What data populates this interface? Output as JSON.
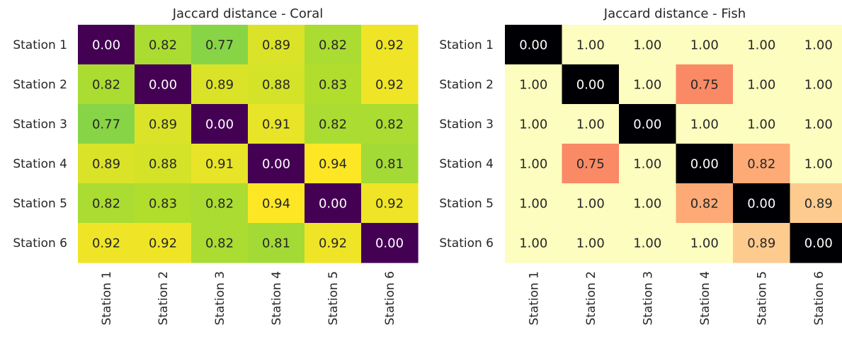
{
  "chart_data": [
    {
      "type": "heatmap",
      "title": "Jaccard distance - Coral",
      "colormap": "viridis",
      "rows": [
        "Station 1",
        "Station 2",
        "Station 3",
        "Station 4",
        "Station 5",
        "Station 6"
      ],
      "columns": [
        "Station 1",
        "Station 2",
        "Station 3",
        "Station 4",
        "Station 5",
        "Station 6"
      ],
      "values": [
        [
          0.0,
          0.82,
          0.77,
          0.89,
          0.82,
          0.92
        ],
        [
          0.82,
          0.0,
          0.89,
          0.88,
          0.83,
          0.92
        ],
        [
          0.77,
          0.89,
          0.0,
          0.91,
          0.82,
          0.82
        ],
        [
          0.89,
          0.88,
          0.91,
          0.0,
          0.94,
          0.81
        ],
        [
          0.82,
          0.83,
          0.82,
          0.94,
          0.0,
          0.92
        ],
        [
          0.92,
          0.92,
          0.82,
          0.81,
          0.92,
          0.0
        ]
      ],
      "labels": [
        [
          "0.00",
          "0.82",
          "0.77",
          "0.89",
          "0.82",
          "0.92"
        ],
        [
          "0.82",
          "0.00",
          "0.89",
          "0.88",
          "0.83",
          "0.92"
        ],
        [
          "0.77",
          "0.89",
          "0.00",
          "0.91",
          "0.82",
          "0.82"
        ],
        [
          "0.89",
          "0.88",
          "0.91",
          "0.00",
          "0.94",
          "0.81"
        ],
        [
          "0.82",
          "0.83",
          "0.82",
          "0.94",
          "0.00",
          "0.92"
        ],
        [
          "0.92",
          "0.92",
          "0.82",
          "0.81",
          "0.92",
          "0.00"
        ]
      ]
    },
    {
      "type": "heatmap",
      "title": "Jaccard distance - Fish",
      "colormap": "magma",
      "rows": [
        "Station 1",
        "Station 2",
        "Station 3",
        "Station 4",
        "Station 5",
        "Station 6"
      ],
      "columns": [
        "Station 1",
        "Station 2",
        "Station 3",
        "Station 4",
        "Station 5",
        "Station 6"
      ],
      "values": [
        [
          0.0,
          1.0,
          1.0,
          1.0,
          1.0,
          1.0
        ],
        [
          1.0,
          0.0,
          1.0,
          0.75,
          1.0,
          1.0
        ],
        [
          1.0,
          1.0,
          0.0,
          1.0,
          1.0,
          1.0
        ],
        [
          1.0,
          0.75,
          1.0,
          0.0,
          0.82,
          1.0
        ],
        [
          1.0,
          1.0,
          1.0,
          0.82,
          0.0,
          0.89
        ],
        [
          1.0,
          1.0,
          1.0,
          1.0,
          0.89,
          0.0
        ]
      ],
      "labels": [
        [
          "0.00",
          "1.00",
          "1.00",
          "1.00",
          "1.00",
          "1.00"
        ],
        [
          "1.00",
          "0.00",
          "1.00",
          "0.75",
          "1.00",
          "1.00"
        ],
        [
          "1.00",
          "1.00",
          "0.00",
          "1.00",
          "1.00",
          "1.00"
        ],
        [
          "1.00",
          "0.75",
          "1.00",
          "0.00",
          "0.82",
          "1.00"
        ],
        [
          "1.00",
          "1.00",
          "1.00",
          "0.82",
          "0.00",
          "0.89"
        ],
        [
          "1.00",
          "1.00",
          "1.00",
          "1.00",
          "0.89",
          "0.00"
        ]
      ]
    }
  ]
}
